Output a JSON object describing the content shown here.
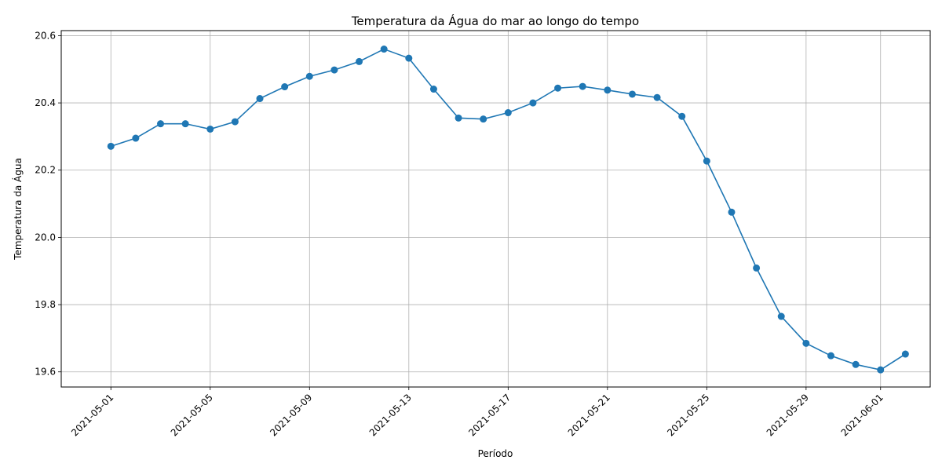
{
  "chart_data": {
    "type": "line",
    "title": "Temperatura da Água do mar ao longo do tempo",
    "xlabel": "Período",
    "ylabel": "Temperatura da Água",
    "x_start": "2021-05-01",
    "x_tick_labels": [
      "2021-05-01",
      "2021-05-05",
      "2021-05-09",
      "2021-05-13",
      "2021-05-17",
      "2021-05-21",
      "2021-05-25",
      "2021-05-29",
      "2021-06-01"
    ],
    "y_ticks": [
      "19.6",
      "19.8",
      "20.0",
      "20.2",
      "20.4",
      "20.6"
    ],
    "ylim": [
      19.555,
      20.615
    ],
    "xlim": [
      "2021-04-29",
      "2021-06-03"
    ],
    "grid": true,
    "line_color": "#1f77b4",
    "series": [
      {
        "x": [
          "2021-05-01",
          "2021-05-02",
          "2021-05-03",
          "2021-05-04",
          "2021-05-05",
          "2021-05-06",
          "2021-05-07",
          "2021-05-08",
          "2021-05-09",
          "2021-05-10",
          "2021-05-11",
          "2021-05-12",
          "2021-05-13",
          "2021-05-14",
          "2021-05-15",
          "2021-05-16",
          "2021-05-17",
          "2021-05-18",
          "2021-05-19",
          "2021-05-20",
          "2021-05-21",
          "2021-05-22",
          "2021-05-23",
          "2021-05-24",
          "2021-05-25",
          "2021-05-26",
          "2021-05-27",
          "2021-05-28",
          "2021-05-29",
          "2021-05-30",
          "2021-05-31",
          "2021-06-01",
          "2021-06-02"
        ],
        "values": [
          20.271,
          20.295,
          20.338,
          20.338,
          20.322,
          20.344,
          20.413,
          20.448,
          20.479,
          20.498,
          20.523,
          20.56,
          20.533,
          20.441,
          20.355,
          20.352,
          20.371,
          20.4,
          20.444,
          20.449,
          20.438,
          20.426,
          20.416,
          20.36,
          20.227,
          20.075,
          19.909,
          19.765,
          19.685,
          19.648,
          19.622,
          19.606,
          19.653
        ]
      }
    ]
  }
}
